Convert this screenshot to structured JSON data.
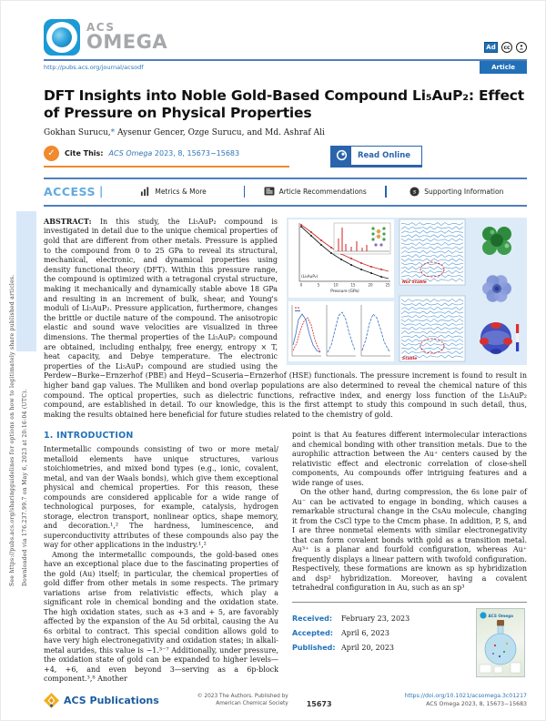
{
  "sidebar": {
    "line1": "Downloaded via 176.237.99.7 on May 6, 2023 at 20:16:04 (UTC).",
    "line2": "See https://pubs.acs.org/sharingguidelines for options on how to legitimately share published articles."
  },
  "header": {
    "logo_acs": "ACS",
    "logo_omega": "OMEGA",
    "url": "http://pubs.acs.org/journal/acsodf",
    "article_badge": "Article",
    "badge_ad": "Ad",
    "badge_cc": "cc"
  },
  "article": {
    "title": "DFT Insights into Noble Gold-Based Compound Li₅AuP₂: Effect of Pressure on Physical Properties",
    "authors_name1": "Gokhan Surucu,",
    "authors_star": "*",
    "authors_rest": " Aysenur Gencer, Ozge Surucu, and Md. Ashraf Ali"
  },
  "cite": {
    "check": "✓",
    "label": "Cite This:",
    "journal": "ACS Omega",
    "ref": " 2023, 8, 15673−15683",
    "read_online": "Read Online"
  },
  "access": {
    "access": "ACCESS",
    "pipe": "|",
    "metrics": "Metrics & More",
    "recommendations": "Article Recommendations",
    "supporting": "Supporting Information"
  },
  "abstract": {
    "label": "ABSTRACT:",
    "text": " In this study, the Li₅AuP₂ compound is investigated in detail due to the unique chemical properties of gold that are different from other metals. Pressure is applied to the compound from 0 to 25 GPa to reveal its structural, mechanical, electronic, and dynamical properties using density functional theory (DFT). Within this pressure range, the compound is optimized with a tetragonal crystal structure, making it mechanically and dynamically stable above 18 GPa and resulting in an increment of bulk, shear, and Young's moduli of Li₅AuP₂. Pressure application, furthermore, changes the brittle or ductile nature of the compound. The anisotropic elastic and sound wave velocities are visualized in three dimensions. The thermal properties of the Li₅AuP₂ compound are obtained, including enthalpy, free energy, entropy × T, heat capacity, and Debye temperature. The electronic properties of the Li₅AuP₂ compound are studied using the Perdew−Burke−Ernzerhof (PBE) and Heyd−Scuseria−Ernzerhof (HSE) functionals. The pressure increment is found to result in higher band gap values. The Mulliken and bond overlap populations are also determined to reveal the chemical nature of this compound. The optical properties, such as dielectric functions, refractive index, and energy loss function of the Li₅AuP₂ compound, are established in detail. To our knowledge, this is the first attempt to study this compound in such detail, thus, making the results obtained here beneficial for future studies related to the chemistry of gold."
  },
  "figure": {
    "xlabel": "Pressure (GPa)",
    "ticks": [
      "0",
      "5",
      "10",
      "15",
      "20",
      "25"
    ],
    "panel_label": "(Li₅AuP₂)",
    "annotation_top": "Not Stable",
    "annotation_bottom": "Stable"
  },
  "intro": {
    "heading": "1. INTRODUCTION",
    "col1_p1": "Intermetallic compounds consisting of two or more metal/ metalloid elements have unique structures, various stoichiometries, and mixed bond types (e.g., ionic, covalent, metal, and van der Waals bonds), which give them exceptional physical and chemical properties. For this reason, these compounds are considered applicable for a wide range of technological purposes, for example, catalysis, hydrogen storage, electron transport, nonlinear optics, shape memory, and decoration.¹,² The hardness, luminescence, and superconductivity attributes of these compounds also pay the way for other applications in the industry.¹,²",
    "col1_p2": "Among the intermetallic compounds, the gold-based ones have an exceptional place due to the fascinating properties of the gold (Au) itself; in particular, the chemical properties of gold differ from other metals in some respects. The primary variations arise from relativistic effects, which play a significant role in chemical bonding and the oxidation state. The high oxidation states, such as +3 and + 5, are favorably affected by the expansion of the Au 5d orbital, causing the Au 6s orbital to contract. This special condition allows gold to have very high electronegativity and oxidation states; in alkali-metal aurides, this value is −1.³⁻⁷ Additionally, under pressure, the oxidation state of gold can be expanded to higher levels—+4, +6, and even beyond 3—serving as a 6p-block component.³,⁸ Another",
    "col2_p1": "point is that Au features different intermolecular interactions and chemical bonding with other transition metals. Due to the aurophilic attraction between the Au⁺ centers caused by the relativistic effect and electronic correlation of close-shell components, Au compounds offer intriguing features and a wide range of uses.",
    "col2_p2": "On the other hand, during compression, the 6s lone pair of Au⁻ can be activated to engage in bonding, which causes a remarkable structural change in the CsAu molecule, changing it from the CsCl type to the Cmcm phase. In addition, P, S, and I are three nonmetal elements with similar electronegativity that can form covalent bonds with gold as a transition metal. Au³⁺ is a planar and fourfold configuration, whereas Au⁺ frequently displays a linear pattern with twofold configuration. Respectively, these formations are known as sp hybridization and dsp² hybridization. Moreover, having a covalent tetrahedral configuration in Au, such as an sp³"
  },
  "dates": {
    "received_label": "Received:",
    "received": "February 23, 2023",
    "accepted_label": "Accepted:",
    "accepted": "April 6, 2023",
    "published_label": "Published:",
    "published": "April 20, 2023",
    "cover_title": "ACS Omega"
  },
  "footer": {
    "publisher": "ACS Publications",
    "copyright1": "© 2023 The Authors. Published by",
    "copyright2": "American Chemical Society",
    "page": "15673",
    "doi": "https://doi.org/10.1021/acsomega.3c01217",
    "ref": "ACS Omega 2023, 8, 15673−15683"
  },
  "colors": {
    "acs_blue": "#2170b8",
    "rule_blue": "#4e7fbd",
    "access_blue": "#62aadf",
    "cite_orange": "#f08a2d",
    "heading_blue": "#2272b9",
    "link_blue": "#2e75b5"
  }
}
